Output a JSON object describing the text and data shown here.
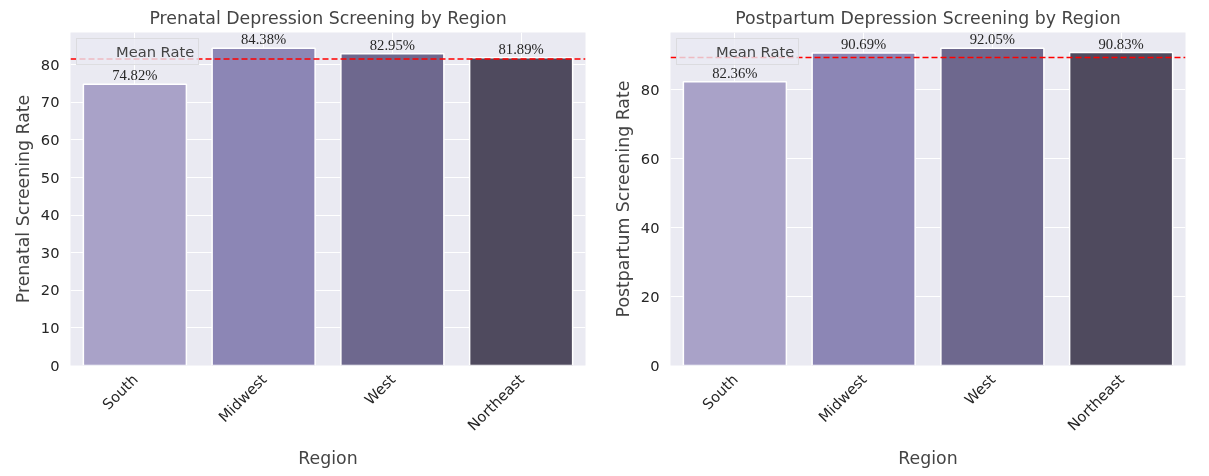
{
  "chart_data": [
    {
      "type": "bar",
      "title": "Prenatal Depression Screening by Region",
      "xlabel": "Region",
      "ylabel": "Prenatal Screening Rate",
      "categories": [
        "South",
        "Midwest",
        "West",
        "Northeast"
      ],
      "values": [
        74.82,
        84.38,
        82.95,
        81.89
      ],
      "colors": [
        "#a9a2c8",
        "#8c86b5",
        "#6e688e",
        "#4f4a5e"
      ],
      "value_labels": [
        "74.82%",
        "84.38%",
        "82.95%",
        "81.89%"
      ],
      "ylim": [
        0,
        88.6
      ],
      "yticks": [
        0,
        10,
        20,
        30,
        40,
        50,
        60,
        70,
        80
      ],
      "grid": true,
      "legend": "top left",
      "ref_lines": [
        {
          "axis": "y",
          "value": 81.56,
          "label": "Mean Rate",
          "color": "#ff0000",
          "line_style": "dashed"
        }
      ]
    },
    {
      "type": "bar",
      "title": "Postpartum Depression Screening by Region",
      "xlabel": "Region",
      "ylabel": "Postpartum Screening Rate",
      "categories": [
        "South",
        "Midwest",
        "West",
        "Northeast"
      ],
      "values": [
        82.36,
        90.69,
        92.05,
        90.83
      ],
      "colors": [
        "#a9a2c8",
        "#8c86b5",
        "#6e688e",
        "#4f4a5e"
      ],
      "value_labels": [
        "82.36%",
        "90.69%",
        "92.05%",
        "90.83%"
      ],
      "ylim": [
        0,
        96.65
      ],
      "yticks": [
        0,
        20,
        40,
        60,
        80
      ],
      "grid": true,
      "legend": "top left",
      "ref_lines": [
        {
          "axis": "y",
          "value": 89.36,
          "label": "Mean Rate",
          "color": "#ff0000",
          "line_style": "dashed"
        }
      ]
    }
  ]
}
